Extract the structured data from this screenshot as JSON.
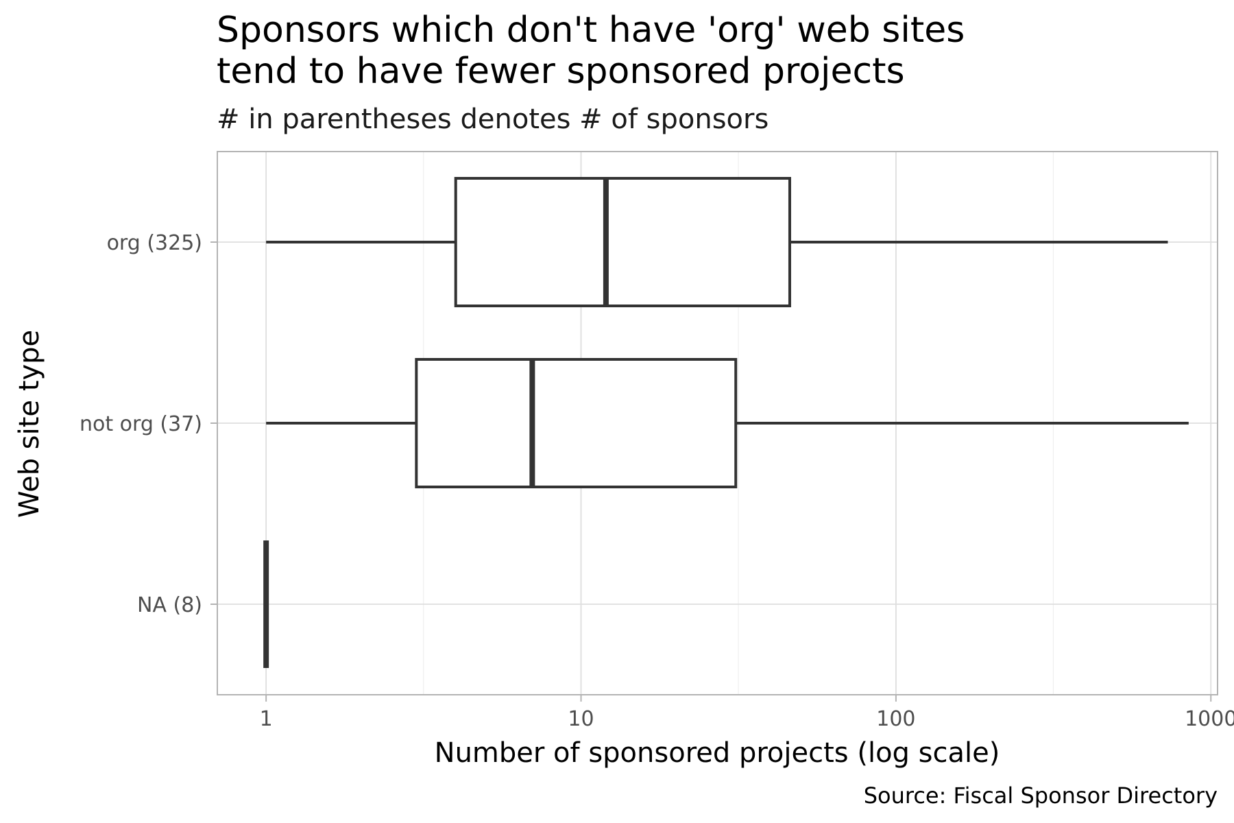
{
  "chart_data": {
    "type": "boxplot",
    "title_lines": [
      "Sponsors which don't have 'org' web sites",
      "tend to have fewer sponsored projects"
    ],
    "subtitle": "# in parentheses denotes # of sponsors",
    "xlabel": "Number of sponsored projects (log scale)",
    "ylabel": "Web site type",
    "caption": "Source: Fiscal Sponsor Directory",
    "x_scale": "log10",
    "xlim": [
      0.7,
      1050
    ],
    "x_ticks": [
      {
        "value": 1,
        "label": "1"
      },
      {
        "value": 10,
        "label": "10"
      },
      {
        "value": 100,
        "label": "100"
      },
      {
        "value": 1000,
        "label": "1000"
      }
    ],
    "x_minor_ticks": [
      3.16,
      31.6,
      316
    ],
    "categories": [
      "org (325)",
      "not org (37)",
      "NA (8)"
    ],
    "boxes": [
      {
        "category": "org (325)",
        "min": 1,
        "q1": 4,
        "median": 12,
        "q3": 46,
        "max": 730
      },
      {
        "category": "not org (37)",
        "min": 1,
        "q1": 3,
        "median": 7,
        "q3": 31,
        "max": 850
      },
      {
        "category": "NA (8)",
        "min": 1,
        "q1": 1,
        "median": 1,
        "q3": 1,
        "max": 1
      }
    ],
    "grid": true,
    "colors": {
      "box_stroke": "#333333",
      "panel_border": "#b3b3b3",
      "grid_major": "#dedede",
      "grid_minor": "#efefef"
    }
  }
}
